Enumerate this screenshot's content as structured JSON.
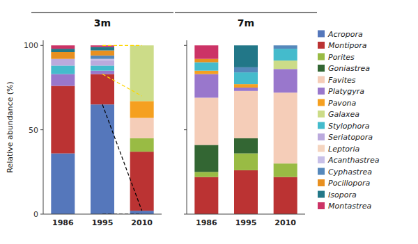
{
  "chart_data": [
    {
      "type": "bar",
      "stacked": true,
      "title": "3m",
      "y_label": "Relative abundance (%)",
      "categories": [
        "1986",
        "1995",
        "2010"
      ],
      "ylim": [
        0,
        103
      ],
      "yticks": [
        0,
        50,
        100
      ],
      "grid": false,
      "legend": "right",
      "series": [
        {
          "name": "Acropora",
          "color": "#5577BB",
          "values": [
            36,
            65,
            2
          ]
        },
        {
          "name": "Montipora",
          "color": "#BB3333",
          "values": [
            40,
            18,
            35
          ]
        },
        {
          "name": "Porites",
          "color": "#99BB44",
          "values": [
            0,
            0,
            8
          ]
        },
        {
          "name": "Goniastrea",
          "color": "#336633",
          "values": [
            0,
            0,
            0
          ]
        },
        {
          "name": "Favites",
          "color": "#F5CDB8",
          "values": [
            0,
            0,
            12
          ]
        },
        {
          "name": "Platygyra",
          "color": "#9977CC",
          "values": [
            7,
            2,
            0
          ]
        },
        {
          "name": "Pavona",
          "color": "#F5A020",
          "values": [
            0,
            0,
            10
          ]
        },
        {
          "name": "Galaxea",
          "color": "#CCDC88",
          "values": [
            0,
            0,
            33
          ]
        },
        {
          "name": "Stylophora",
          "color": "#44BBCC",
          "values": [
            5,
            3,
            0
          ]
        },
        {
          "name": "Seriatopora",
          "color": "#BBAADD",
          "values": [
            4,
            3,
            0
          ]
        },
        {
          "name": "Leptoria",
          "color": "#F5D5C0",
          "values": [
            0,
            0,
            0
          ]
        },
        {
          "name": "Acanthastrea",
          "color": "#C8C0E8",
          "values": [
            0,
            1,
            0
          ]
        },
        {
          "name": "Cyphastrea",
          "color": "#5588BB",
          "values": [
            0,
            2,
            0
          ]
        },
        {
          "name": "Pocillopora",
          "color": "#E89020",
          "values": [
            4,
            3,
            0
          ]
        },
        {
          "name": "Isopora",
          "color": "#227788",
          "values": [
            2,
            2,
            0
          ]
        },
        {
          "name": "Montastrea",
          "color": "#CC3366",
          "values": [
            2,
            1,
            0
          ]
        }
      ],
      "reference_lines": [
        {
          "x": [
            "1995",
            "2010"
          ],
          "values": [
            83,
            70
          ],
          "color": "#FFD700",
          "line_style": "dashed"
        },
        {
          "x": [
            "1995",
            "2010"
          ],
          "values": [
            100,
            100
          ],
          "color": "#FFD700",
          "line_style": "dashed"
        },
        {
          "x": [
            "1995",
            "2010"
          ],
          "values": [
            65,
            2
          ],
          "color": "#000000",
          "line_style": "dashed"
        },
        {
          "x": [
            "1995",
            "2010"
          ],
          "values": [
            0,
            0
          ],
          "color": "#000000",
          "line_style": "dashed"
        }
      ]
    },
    {
      "type": "bar",
      "stacked": true,
      "title": "7m",
      "categories": [
        "1986",
        "1995",
        "2010"
      ],
      "ylim": [
        0,
        103
      ],
      "yticks": [
        0,
        50,
        100
      ],
      "grid": false,
      "tick_labels": "x",
      "series": [
        {
          "name": "Acropora",
          "color": "#5577BB",
          "values": [
            0,
            0,
            0
          ]
        },
        {
          "name": "Montipora",
          "color": "#BB3333",
          "values": [
            22,
            26,
            22
          ]
        },
        {
          "name": "Porites",
          "color": "#99BB44",
          "values": [
            3,
            10,
            8
          ]
        },
        {
          "name": "Goniastrea",
          "color": "#336633",
          "values": [
            16,
            9,
            0
          ]
        },
        {
          "name": "Favites",
          "color": "#F5CDB8",
          "values": [
            28,
            28,
            42
          ]
        },
        {
          "name": "Platygyra",
          "color": "#9977CC",
          "values": [
            14,
            2,
            14
          ]
        },
        {
          "name": "Pavona",
          "color": "#F5A020",
          "values": [
            2,
            2,
            0
          ]
        },
        {
          "name": "Galaxea",
          "color": "#CCDC88",
          "values": [
            0,
            0,
            5
          ]
        },
        {
          "name": "Stylophora",
          "color": "#44BBCC",
          "values": [
            5,
            7,
            7
          ]
        },
        {
          "name": "Seriatopora",
          "color": "#BBAADD",
          "values": [
            0,
            0,
            0
          ]
        },
        {
          "name": "Leptoria",
          "color": "#F5D5C0",
          "values": [
            0,
            0,
            0
          ]
        },
        {
          "name": "Acanthastrea",
          "color": "#C8C0E8",
          "values": [
            0,
            0,
            0
          ]
        },
        {
          "name": "Cyphastrea",
          "color": "#5588BB",
          "values": [
            0,
            3,
            2
          ]
        },
        {
          "name": "Pocillopora",
          "color": "#E89020",
          "values": [
            2,
            0,
            0
          ]
        },
        {
          "name": "Isopora",
          "color": "#227788",
          "values": [
            0,
            13,
            0
          ]
        },
        {
          "name": "Montastrea",
          "color": "#CC3366",
          "values": [
            8,
            0,
            0
          ]
        }
      ]
    }
  ]
}
